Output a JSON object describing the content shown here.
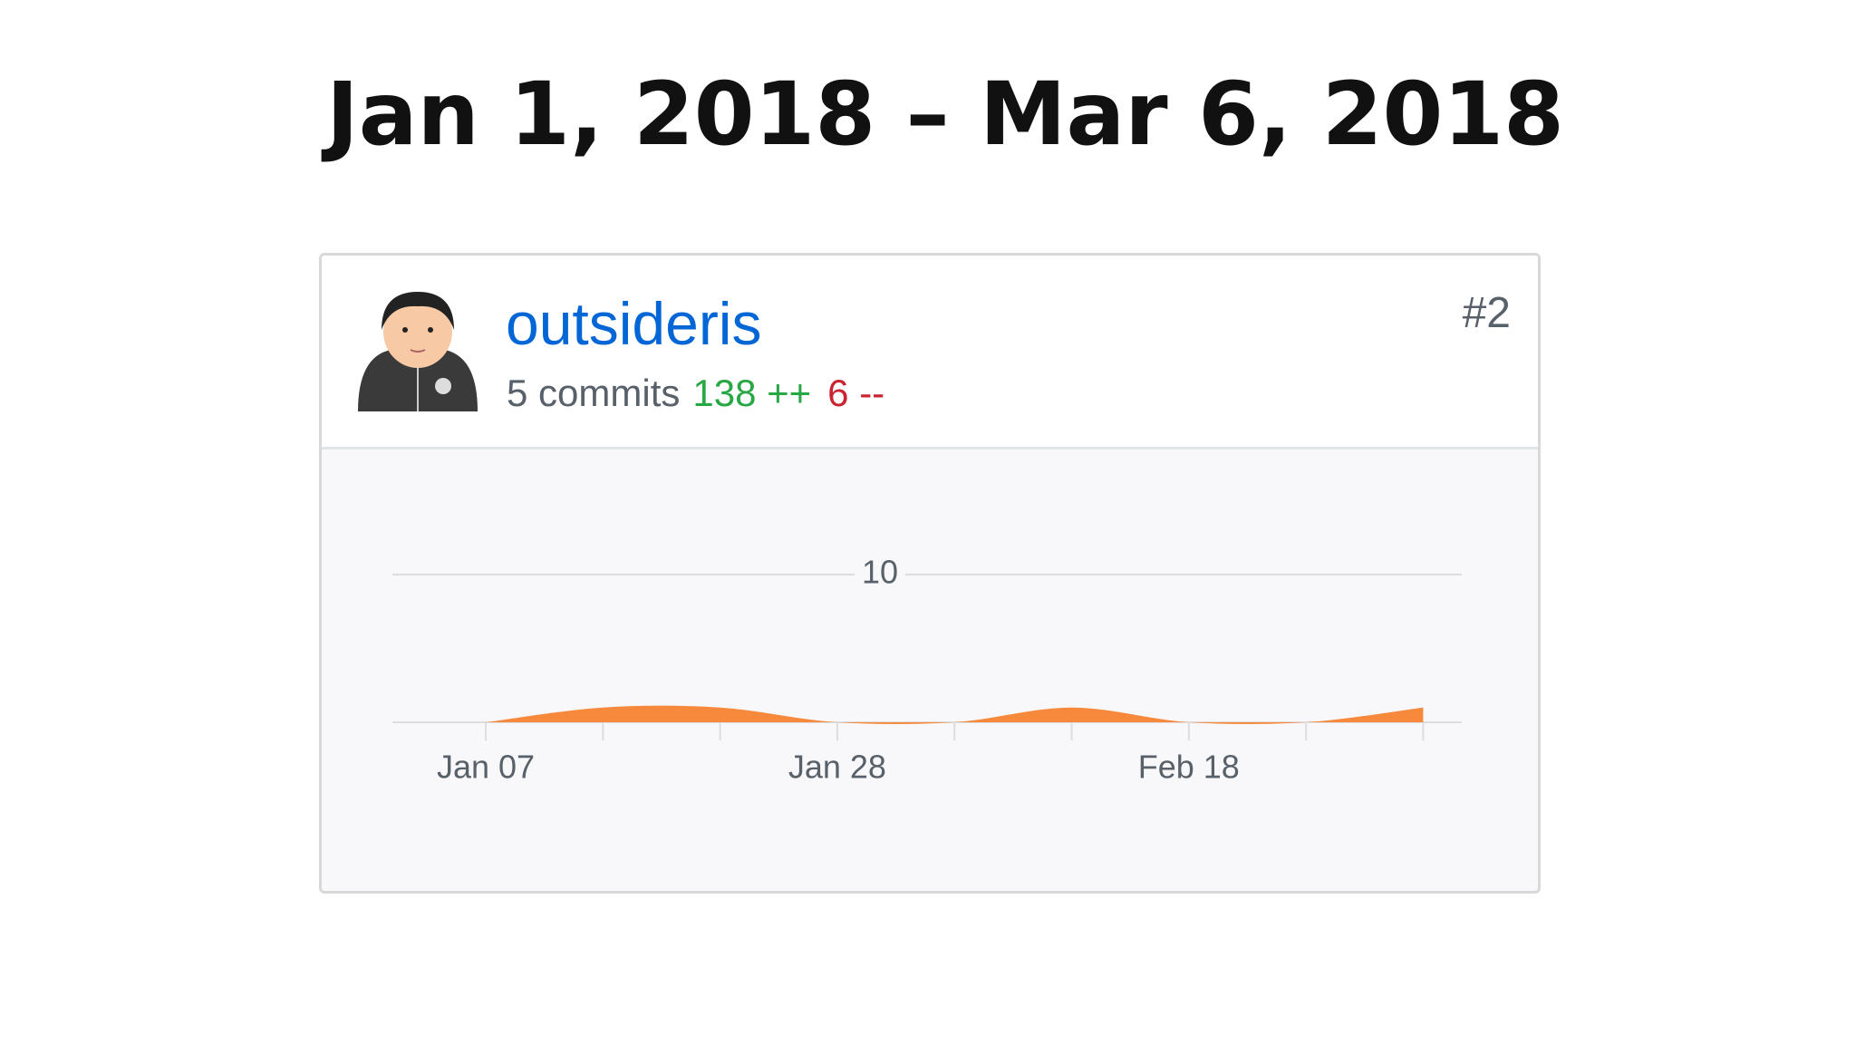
{
  "title": "Jan 1, 2018 – Mar 6, 2018",
  "card": {
    "username": "outsideris",
    "commits": "5 commits",
    "additions": "138 ++",
    "deletions": "6 --",
    "rank": "#2"
  },
  "chart_data": {
    "type": "area",
    "color": "#f6893b",
    "categories": [
      "Jan 07",
      null,
      null,
      "Jan 28",
      null,
      null,
      "Feb 18",
      null,
      null
    ],
    "values": [
      0,
      1,
      1,
      0,
      0,
      1,
      0,
      0,
      1
    ],
    "ylim": [
      0,
      15
    ],
    "yticks": [
      10
    ],
    "grid": true
  }
}
